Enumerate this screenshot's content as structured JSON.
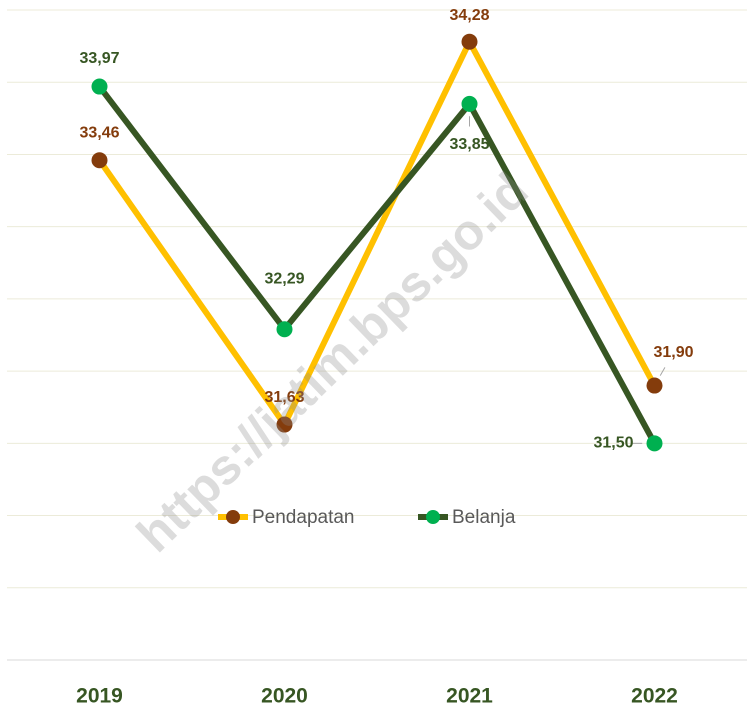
{
  "chart_data": {
    "type": "line",
    "categories": [
      "2019",
      "2020",
      "2021",
      "2022"
    ],
    "series": [
      {
        "name": "Pendapatan",
        "color": "#ffc000",
        "marker_color": "#843c0c",
        "label_color": "#843c0c",
        "values": [
          33.46,
          31.63,
          34.28,
          31.9
        ],
        "value_labels": [
          "33,46",
          "31,63",
          "34,28",
          "31,90"
        ]
      },
      {
        "name": "Belanja",
        "color": "#375623",
        "marker_color": "#00b050",
        "label_color": "#375623",
        "values": [
          33.97,
          32.29,
          33.85,
          31.5
        ],
        "value_labels": [
          "33,97",
          "32,29",
          "33,85",
          "31,50"
        ]
      }
    ],
    "ylim": [
      30,
      34.5
    ],
    "yticks": [
      30,
      30.5,
      31,
      31.5,
      32,
      32.5,
      33,
      33.5,
      34,
      34.5
    ],
    "grid": true,
    "legend": "inside",
    "watermark": "https://jatim.bps.go.id"
  }
}
